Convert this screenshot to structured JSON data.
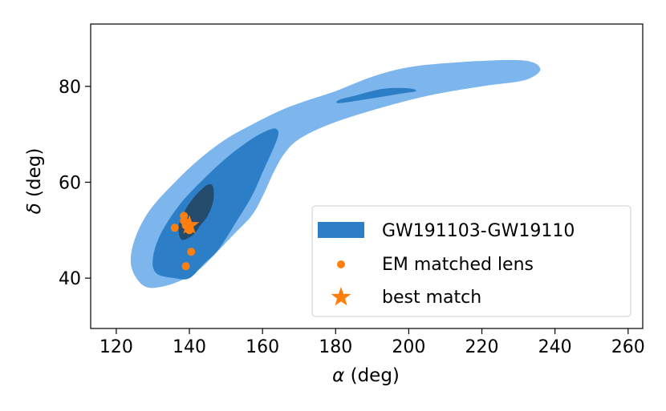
{
  "chart_data": {
    "type": "contour-scatter",
    "xlabel_symbol": "α",
    "xlabel_unit": "(deg)",
    "ylabel_symbol": "δ",
    "ylabel_unit": "(deg)",
    "xlim": [
      113,
      264
    ],
    "ylim": [
      29.5,
      93
    ],
    "xticks": [
      120,
      140,
      160,
      180,
      200,
      220,
      240,
      260
    ],
    "yticks": [
      40,
      60,
      80
    ],
    "contours": {
      "name": "GW191103-GW19110",
      "colors": {
        "outer": "#7db6ed",
        "middle": "#2c7fc7",
        "inner": "#244a6c"
      },
      "outer": [
        [
          129,
          38
        ],
        [
          134,
          38.5
        ],
        [
          139,
          40
        ],
        [
          143,
          42
        ],
        [
          147,
          45
        ],
        [
          152,
          49
        ],
        [
          157,
          53
        ],
        [
          160,
          57
        ],
        [
          163,
          62
        ],
        [
          166,
          66
        ],
        [
          170,
          69
        ],
        [
          178,
          72
        ],
        [
          190,
          75
        ],
        [
          205,
          78
        ],
        [
          220,
          80
        ],
        [
          230,
          81
        ],
        [
          234,
          82
        ],
        [
          236,
          83.5
        ],
        [
          234,
          85
        ],
        [
          228,
          85.5
        ],
        [
          213,
          85
        ],
        [
          200,
          84
        ],
        [
          190,
          82
        ],
        [
          180,
          79
        ],
        [
          172,
          77
        ],
        [
          165,
          75
        ],
        [
          157,
          72
        ],
        [
          150,
          69
        ],
        [
          143,
          65
        ],
        [
          136,
          60
        ],
        [
          129,
          54
        ],
        [
          125,
          48
        ],
        [
          124,
          43
        ],
        [
          126,
          39.5
        ]
      ],
      "middle": [
        [
          136,
          40
        ],
        [
          140,
          40
        ],
        [
          144,
          43
        ],
        [
          148,
          46
        ],
        [
          153,
          52
        ],
        [
          157,
          57
        ],
        [
          160,
          62
        ],
        [
          164,
          69
        ],
        [
          164,
          71
        ],
        [
          162,
          71
        ],
        [
          157,
          69
        ],
        [
          150,
          65
        ],
        [
          143,
          60
        ],
        [
          137,
          55
        ],
        [
          132,
          49
        ],
        [
          130,
          44
        ],
        [
          131,
          41
        ]
      ],
      "inner": [
        [
          138,
          48
        ],
        [
          141,
          49
        ],
        [
          143,
          51
        ],
        [
          145,
          53
        ],
        [
          146.5,
          56
        ],
        [
          146.5,
          59
        ],
        [
          145,
          59.5
        ],
        [
          142,
          57.5
        ],
        [
          139.5,
          55
        ],
        [
          137.5,
          52
        ],
        [
          137,
          50
        ]
      ],
      "north_middle": [
        [
          181,
          76.5
        ],
        [
          190,
          77.5
        ],
        [
          198,
          78.5
        ],
        [
          202,
          79
        ],
        [
          200,
          79.6
        ],
        [
          193,
          79.5
        ],
        [
          185,
          78
        ],
        [
          181,
          77.2
        ]
      ]
    },
    "em_lenses": {
      "name": "EM matched lens",
      "color": "#ff7f0e",
      "points": [
        [
          136,
          50.5
        ],
        [
          138.5,
          53
        ],
        [
          138.5,
          52
        ],
        [
          139,
          51
        ],
        [
          140,
          50
        ],
        [
          139,
          42.5
        ],
        [
          140.5,
          45.5
        ]
      ]
    },
    "best_match": {
      "name": "best match",
      "color": "#ff7f0e",
      "point": [
        140,
        51
      ]
    },
    "legend_placement": "lower-right",
    "grid": false
  }
}
